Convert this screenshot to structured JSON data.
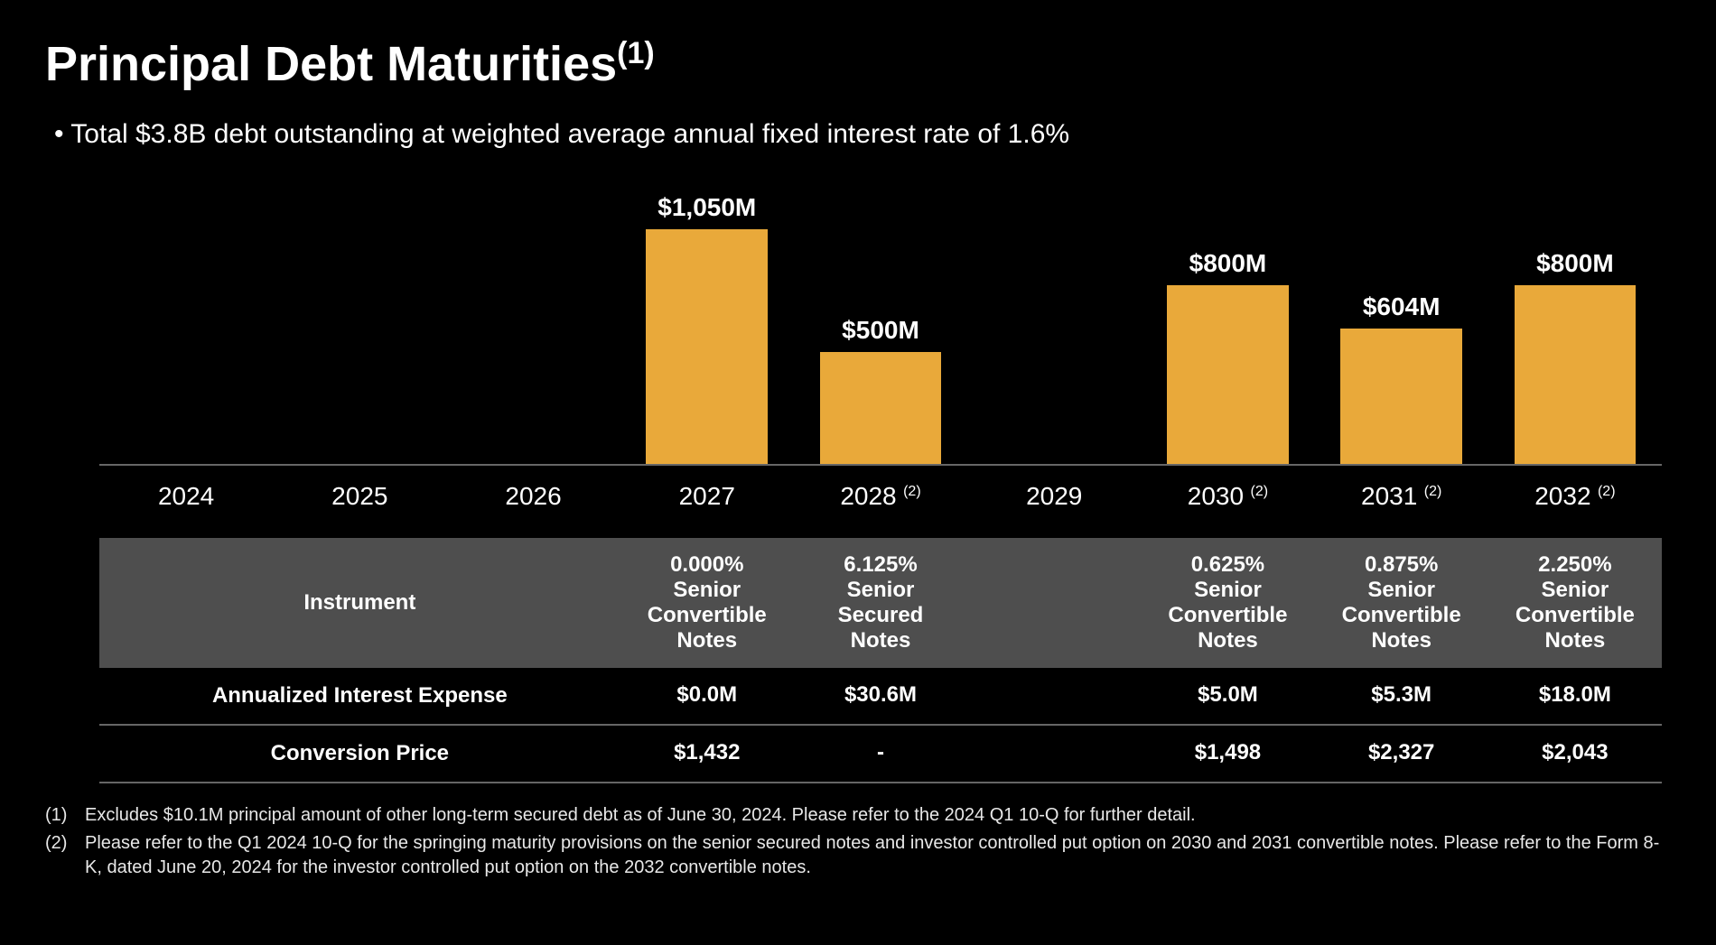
{
  "title": "Principal Debt Maturities",
  "title_sup": "(1)",
  "subtitle": "Total $3.8B debt outstanding at weighted average annual fixed interest rate of 1.6%",
  "chart": {
    "type": "bar",
    "bar_color": "#e9a93a",
    "background_color": "#000000",
    "axis_color": "#666666",
    "ymax": 1050,
    "label_fontsize": 28,
    "bar_width_pct": 70,
    "categories": [
      {
        "year": "2024",
        "value": 0,
        "label": "",
        "footnote": ""
      },
      {
        "year": "2025",
        "value": 0,
        "label": "",
        "footnote": ""
      },
      {
        "year": "2026",
        "value": 0,
        "label": "",
        "footnote": ""
      },
      {
        "year": "2027",
        "value": 1050,
        "label": "$1,050M",
        "footnote": ""
      },
      {
        "year": "2028",
        "value": 500,
        "label": "$500M",
        "footnote": "(2)"
      },
      {
        "year": "2029",
        "value": 0,
        "label": "",
        "footnote": ""
      },
      {
        "year": "2030",
        "value": 800,
        "label": "$800M",
        "footnote": "(2)"
      },
      {
        "year": "2031",
        "value": 604,
        "label": "$604M",
        "footnote": "(2)"
      },
      {
        "year": "2032",
        "value": 800,
        "label": "$800M",
        "footnote": "(2)"
      }
    ]
  },
  "table": {
    "header_bg": "#4e4e4e",
    "border_color": "#666666",
    "rows": [
      {
        "key": "instrument",
        "label": "Instrument",
        "cells": [
          "",
          "",
          "",
          "0.000% Senior Convertible Notes",
          "6.125% Senior Secured Notes",
          "",
          "0.625% Senior Convertible Notes",
          "0.875% Senior Convertible Notes",
          "2.250% Senior Convertible Notes"
        ]
      },
      {
        "key": "interest",
        "label": "Annualized Interest Expense",
        "cells": [
          "",
          "",
          "",
          "$0.0M",
          "$30.6M",
          "",
          "$5.0M",
          "$5.3M",
          "$18.0M"
        ]
      },
      {
        "key": "conversion",
        "label": "Conversion Price",
        "cells": [
          "",
          "",
          "",
          "$1,432",
          "-",
          "",
          "$1,498",
          "$2,327",
          "$2,043"
        ]
      }
    ]
  },
  "footnotes": [
    {
      "num": "(1)",
      "text": "Excludes $10.1M principal amount of other long-term secured debt as of June 30, 2024. Please refer to the 2024 Q1 10-Q for further detail."
    },
    {
      "num": "(2)",
      "text": "Please refer to the Q1 2024 10-Q for the springing maturity provisions on the senior secured notes and investor controlled put option on 2030 and 2031 convertible notes. Please refer to the Form 8-K, dated June 20, 2024 for the investor controlled put option on the 2032 convertible notes."
    }
  ]
}
